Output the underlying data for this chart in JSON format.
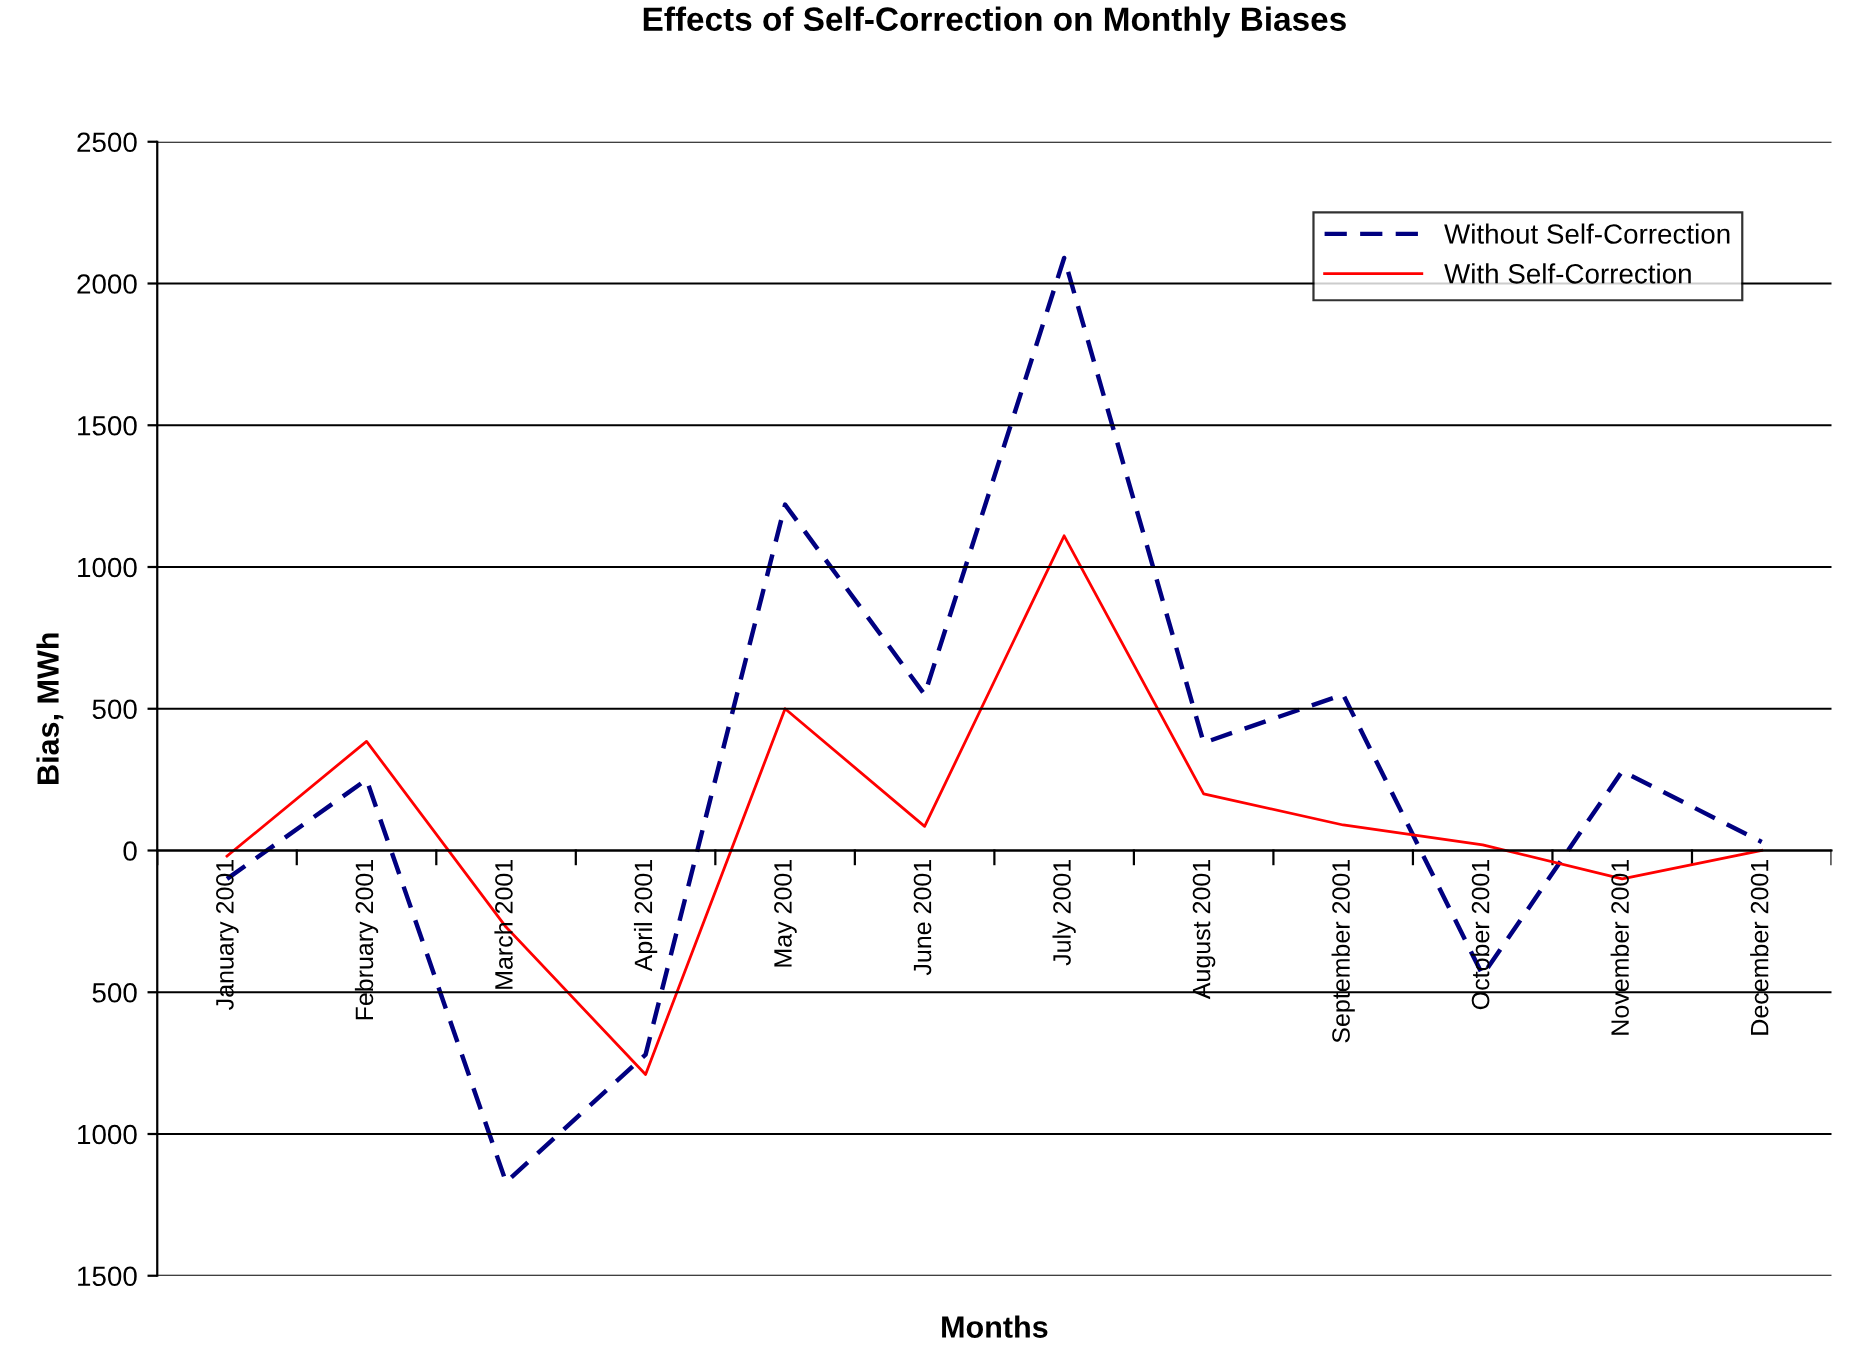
{
  "chart_data": {
    "type": "line",
    "title": "Effects of Self-Correction on Monthly Biases",
    "xlabel": "Months",
    "ylabel": "Bias, MWh",
    "categories": [
      "January 2001",
      "February 2001",
      "March 2001",
      "April 2001",
      "May 2001",
      "June 2001",
      "July 2001",
      "August 2001",
      "September 2001",
      "October 2001",
      "November 2001",
      "December 2001"
    ],
    "series": [
      {
        "name": "Without Self-Correction",
        "color": "#000080",
        "line_style": "dashed",
        "values": [
          -100,
          250,
          -1170,
          -720,
          1220,
          550,
          2090,
          380,
          550,
          -440,
          280,
          30
        ]
      },
      {
        "name": "With Self-Correction",
        "color": "#ff0000",
        "line_style": "solid",
        "values": [
          -20,
          385,
          -270,
          -790,
          500,
          85,
          1110,
          200,
          90,
          20,
          -100,
          0
        ]
      }
    ],
    "ylim": [
      -1500,
      2500
    ],
    "yticks": [
      {
        "value": -1500,
        "label": "1500"
      },
      {
        "value": -1000,
        "label": "1000"
      },
      {
        "value": -500,
        "label": "500"
      },
      0,
      500,
      1000,
      1500,
      2000,
      2500
    ],
    "grid": "y",
    "legend": "top right",
    "marker": "none"
  }
}
